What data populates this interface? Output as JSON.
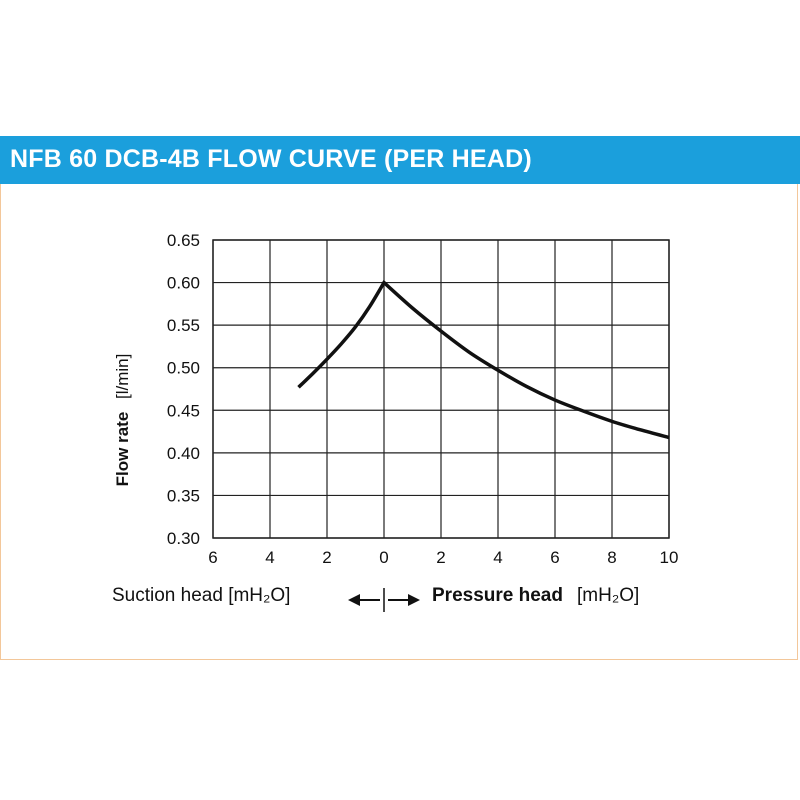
{
  "title": "NFB 60 DCB-4B FLOW CURVE (PER HEAD)",
  "colors": {
    "accent": "#1b9fdc",
    "border": "#f3c79a",
    "curve": "#111111",
    "grid": "#222222"
  },
  "chart_data": {
    "type": "line",
    "title": "NFB 60 DCB-4B FLOW CURVE (PER HEAD)",
    "ylabel_bold": "Flow rate",
    "ylabel_unit": "[l/min]",
    "xlabel_left": "Suction head [mH₂O]",
    "xlabel_right_bold": "Pressure head",
    "xlabel_right_unit": "[mH₂O]",
    "xlim": [
      -6,
      10
    ],
    "ylim": [
      0.3,
      0.65
    ],
    "x_ticks": [
      -6,
      -4,
      -2,
      0,
      2,
      4,
      6,
      8,
      10
    ],
    "x_tick_labels": [
      "6",
      "4",
      "2",
      "0",
      "2",
      "4",
      "6",
      "8",
      "10"
    ],
    "y_ticks": [
      0.3,
      0.35,
      0.4,
      0.45,
      0.5,
      0.55,
      0.6,
      0.65
    ],
    "y_tick_labels": [
      "0.30",
      "0.35",
      "0.40",
      "0.45",
      "0.50",
      "0.55",
      "0.60",
      "0.65"
    ],
    "grid": true,
    "series": [
      {
        "x": [
          -3,
          -2.5,
          -2,
          -1.5,
          -1,
          -0.5,
          0,
          1,
          2,
          3,
          4,
          5,
          6,
          7,
          8,
          9,
          10
        ],
        "values": [
          0.477,
          0.493,
          0.51,
          0.528,
          0.548,
          0.572,
          0.6,
          0.57,
          0.543,
          0.518,
          0.497,
          0.478,
          0.462,
          0.449,
          0.437,
          0.427,
          0.418
        ]
      }
    ]
  }
}
